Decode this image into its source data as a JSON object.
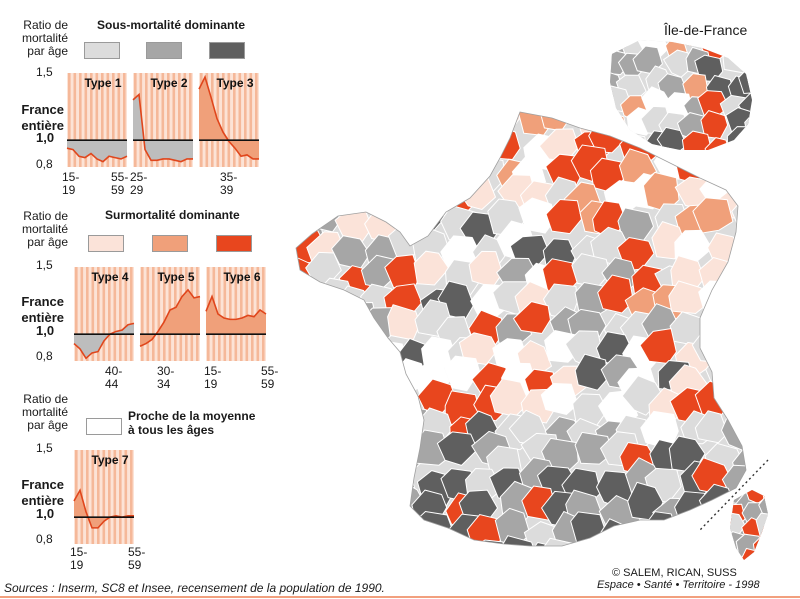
{
  "legend": {
    "ratio_label_lines": [
      "Ratio de",
      "mortalité",
      "par âge"
    ],
    "france_entiere_lines": [
      "France",
      "entière"
    ],
    "y_ticks": [
      "1,5",
      "1,0",
      "0,8"
    ],
    "groups": [
      {
        "heading": "Sous-mortalité dominante",
        "swatch_colors": [
          "#dcdcdc",
          "#a6a6a6",
          "#5f5f5f"
        ],
        "panels": [
          {
            "title": "Type 1",
            "ratios": [
              0.94,
              0.93,
              0.88,
              0.87,
              0.9,
              0.86,
              0.84,
              0.88,
              0.87,
              0.86,
              0.88
            ]
          },
          {
            "title": "Type 2",
            "ratios": [
              1.3,
              1.34,
              0.93,
              0.85,
              0.85,
              0.86,
              0.86,
              0.85,
              0.84,
              0.86,
              0.86
            ]
          },
          {
            "title": "Type 3",
            "ratios": [
              1.38,
              1.47,
              1.32,
              1.16,
              1.06,
              0.99,
              0.94,
              0.88,
              0.89,
              0.86,
              0.86
            ]
          }
        ],
        "x_labels": [
          {
            "top": "15-",
            "bottom": "19"
          },
          {
            "top": "55-",
            "bottom": "59"
          },
          {
            "top": "25-",
            "bottom": "29"
          },
          {
            "top": "35-",
            "bottom": "39"
          }
        ]
      },
      {
        "heading": "Surmortalité dominante",
        "swatch_colors": [
          "#fbe3d9",
          "#f0a07a",
          "#e8461e"
        ],
        "panels": [
          {
            "title": "Type 4",
            "ratios": [
              0.93,
              0.89,
              0.82,
              0.86,
              0.87,
              0.95,
              1.0,
              1.02,
              1.03,
              1.07,
              1.08
            ]
          },
          {
            "title": "Type 5",
            "ratios": [
              0.91,
              0.93,
              0.96,
              1.02,
              1.09,
              1.18,
              1.2,
              1.28,
              1.33,
              1.27,
              1.28
            ]
          },
          {
            "title": "Type 6",
            "ratios": [
              1.17,
              1.28,
              1.15,
              1.12,
              1.11,
              1.11,
              1.12,
              1.14,
              1.13,
              1.18,
              1.15
            ]
          }
        ],
        "x_labels": [
          {
            "top": "40-",
            "bottom": "44"
          },
          {
            "top": "30-",
            "bottom": "34"
          },
          {
            "top": "15-",
            "bottom": "19"
          },
          {
            "top": "55-",
            "bottom": "59"
          }
        ]
      },
      {
        "heading": "Proche de la moyenne à tous les âges",
        "heading_lines": [
          "Proche de la moyenne",
          "à tous les âges"
        ],
        "swatch_colors": [
          "#ffffff"
        ],
        "panels": [
          {
            "title": "Type 7",
            "ratios": [
              1.12,
              1.2,
              1.04,
              0.92,
              0.92,
              0.97,
              1.0,
              1.01,
              1.0,
              1.01,
              1.01
            ]
          }
        ],
        "x_labels": [
          {
            "top": "15-",
            "bottom": "19"
          },
          {
            "top": "55-",
            "bottom": "59"
          }
        ]
      }
    ]
  },
  "map": {
    "inset_title": "Île-de-France",
    "colors": {
      "c1": "#dcdcdc",
      "c2": "#a6a6a6",
      "c3": "#5f5f5f",
      "c4": "#fbe3d9",
      "c5": "#f0a07a",
      "c6": "#e8461e",
      "c7": "#ffffff",
      "border": "#ffffff",
      "outline": "#8c8c8c"
    }
  },
  "credits": {
    "copyright": "© SALEM, RICAN, SUSS",
    "publisher": "Espace • Santé • Territoire - 1998"
  },
  "sources": "Sources : Inserm, SC8 et Insee, recensement de la population de 1990.",
  "accent_line_color": "#f2a07e"
}
